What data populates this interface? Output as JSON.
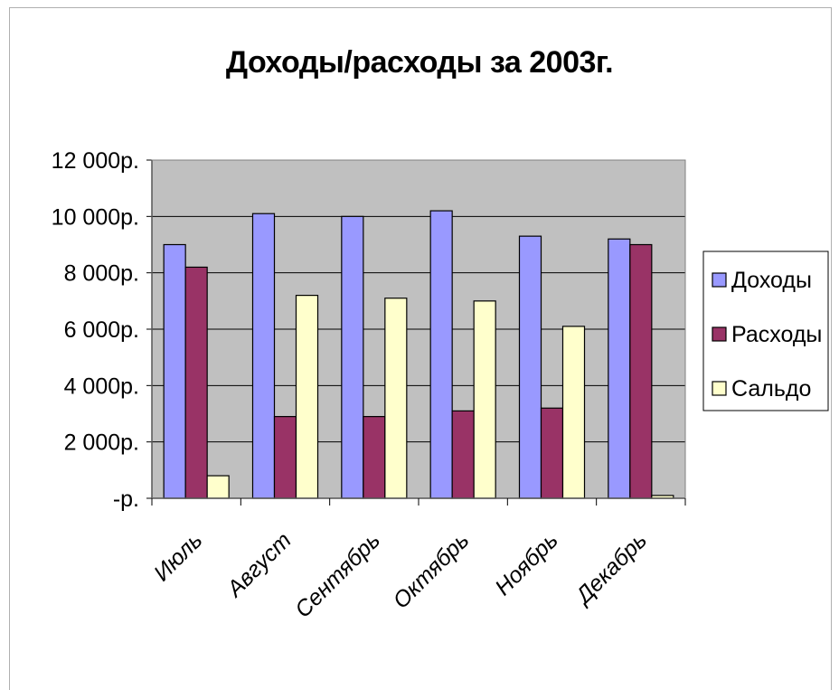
{
  "chart_data": {
    "type": "bar",
    "title": "Доходы/расходы за 2003г.",
    "xlabel": "",
    "ylabel": "",
    "categories": [
      "Июль",
      "Август",
      "Сентябрь",
      "Октябрь",
      "Ноябрь",
      "Декабрь"
    ],
    "series": [
      {
        "name": "Доходы",
        "color": "#9999ff",
        "values": [
          9000,
          10100,
          10000,
          10200,
          9300,
          9200
        ]
      },
      {
        "name": "Расходы",
        "color": "#993366",
        "values": [
          8200,
          2900,
          2900,
          3100,
          3200,
          9000
        ]
      },
      {
        "name": "Сальдо",
        "color": "#ffffcc",
        "values": [
          800,
          7200,
          7100,
          7000,
          6100,
          100
        ]
      }
    ],
    "ylim": [
      0,
      12000
    ],
    "yticks": [
      {
        "value": 0,
        "label": "-р."
      },
      {
        "value": 2000,
        "label": "2 000р."
      },
      {
        "value": 4000,
        "label": "4 000р."
      },
      {
        "value": 6000,
        "label": "6 000р."
      },
      {
        "value": 8000,
        "label": "8 000р."
      },
      {
        "value": 10000,
        "label": "10 000р."
      },
      {
        "value": 12000,
        "label": "12 000р."
      }
    ],
    "grid": true,
    "plot_background": "#c0c0c0",
    "legend_position": "right"
  }
}
